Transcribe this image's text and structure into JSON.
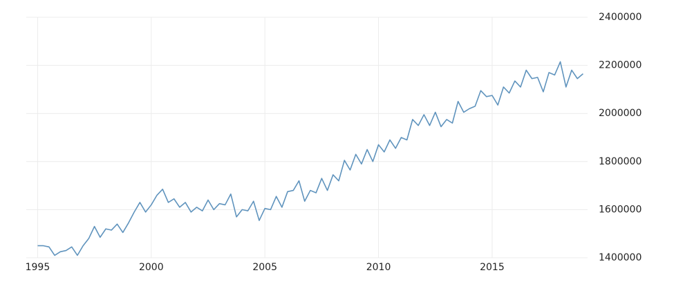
{
  "chart_data": {
    "type": "line",
    "x": [
      1995,
      1995.25,
      1995.5,
      1995.75,
      1996,
      1996.25,
      1996.5,
      1996.75,
      1997,
      1997.25,
      1997.5,
      1997.75,
      1998,
      1998.25,
      1998.5,
      1998.75,
      1999,
      1999.25,
      1999.5,
      1999.75,
      2000,
      2000.25,
      2000.5,
      2000.75,
      2001,
      2001.25,
      2001.5,
      2001.75,
      2002,
      2002.25,
      2002.5,
      2002.75,
      2003,
      2003.25,
      2003.5,
      2003.75,
      2004,
      2004.25,
      2004.5,
      2004.75,
      2005,
      2005.25,
      2005.5,
      2005.75,
      2006,
      2006.25,
      2006.5,
      2006.75,
      2007,
      2007.25,
      2007.5,
      2007.75,
      2008,
      2008.25,
      2008.5,
      2008.75,
      2009,
      2009.25,
      2009.5,
      2009.75,
      2010,
      2010.25,
      2010.5,
      2010.75,
      2011,
      2011.25,
      2011.5,
      2011.75,
      2012,
      2012.25,
      2012.5,
      2012.75,
      2013,
      2013.25,
      2013.5,
      2013.75,
      2014,
      2014.25,
      2014.5,
      2014.75,
      2015,
      2015.25,
      2015.5,
      2015.75,
      2016,
      2016.25,
      2016.5,
      2016.75,
      2017,
      2017.25,
      2017.5,
      2017.75,
      2018,
      2018.25,
      2018.5,
      2018.75,
      2019
    ],
    "series": [
      {
        "color": "#5f93bd",
        "values": [
          1450000,
          1450000,
          1445000,
          1410000,
          1425000,
          1430000,
          1445000,
          1410000,
          1450000,
          1480000,
          1530000,
          1485000,
          1520000,
          1515000,
          1540000,
          1505000,
          1545000,
          1590000,
          1630000,
          1590000,
          1620000,
          1660000,
          1685000,
          1630000,
          1645000,
          1610000,
          1630000,
          1590000,
          1610000,
          1595000,
          1640000,
          1600000,
          1625000,
          1620000,
          1665000,
          1570000,
          1600000,
          1595000,
          1635000,
          1555000,
          1605000,
          1600000,
          1655000,
          1610000,
          1675000,
          1680000,
          1720000,
          1635000,
          1680000,
          1670000,
          1730000,
          1680000,
          1745000,
          1720000,
          1805000,
          1765000,
          1830000,
          1790000,
          1850000,
          1800000,
          1870000,
          1840000,
          1890000,
          1855000,
          1900000,
          1890000,
          1975000,
          1950000,
          1995000,
          1950000,
          2005000,
          1945000,
          1975000,
          1960000,
          2050000,
          2005000,
          2020000,
          2030000,
          2095000,
          2070000,
          2075000,
          2035000,
          2110000,
          2085000,
          2135000,
          2110000,
          2180000,
          2145000,
          2150000,
          2090000,
          2170000,
          2160000,
          2215000,
          2110000,
          2180000,
          2145000,
          2165000
        ]
      }
    ],
    "xlim": [
      1994.5,
      2019.2
    ],
    "xticks": [
      1995,
      2000,
      2005,
      2010,
      2015
    ],
    "ylim": [
      1400000,
      2400000
    ],
    "yticks": [
      1400000,
      1600000,
      1800000,
      2000000,
      2200000,
      2400000
    ],
    "grid": true
  }
}
